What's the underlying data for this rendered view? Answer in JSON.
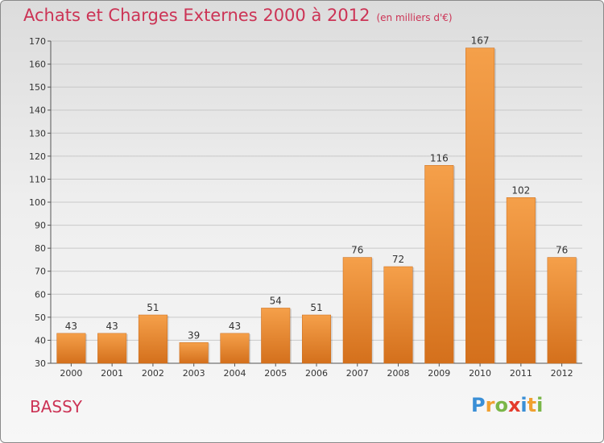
{
  "title": "Achats et Charges Externes 2000 à 2012",
  "subtitle": "(en milliers d'€)",
  "commune": "BASSY",
  "logo": {
    "letters": [
      "P",
      "r",
      "o",
      "x",
      "i",
      "t",
      "i"
    ],
    "colors": [
      "#3a8fd6",
      "#f0a030",
      "#7ab648",
      "#e43b2c",
      "#3a8fd6",
      "#f0a030",
      "#7ab648"
    ]
  },
  "colors": {
    "bar_top": "#f5a04a",
    "bar_bottom": "#d4701c",
    "title": "#cc3355",
    "grid": "#c8c8c8"
  },
  "chart_data": {
    "type": "bar",
    "title": "Achats et Charges Externes 2000 à 2012",
    "subtitle": "(en milliers d'€)",
    "categories": [
      "2000",
      "2001",
      "2002",
      "2003",
      "2004",
      "2005",
      "2006",
      "2007",
      "2008",
      "2009",
      "2010",
      "2011",
      "2012"
    ],
    "values": [
      43,
      43,
      51,
      39,
      43,
      54,
      51,
      76,
      72,
      116,
      167,
      102,
      76
    ],
    "ylim": [
      30,
      170
    ],
    "yticks": [
      30,
      40,
      50,
      60,
      70,
      80,
      90,
      100,
      110,
      120,
      130,
      140,
      150,
      160,
      170
    ],
    "grid": true,
    "xlabel": "",
    "ylabel": ""
  }
}
